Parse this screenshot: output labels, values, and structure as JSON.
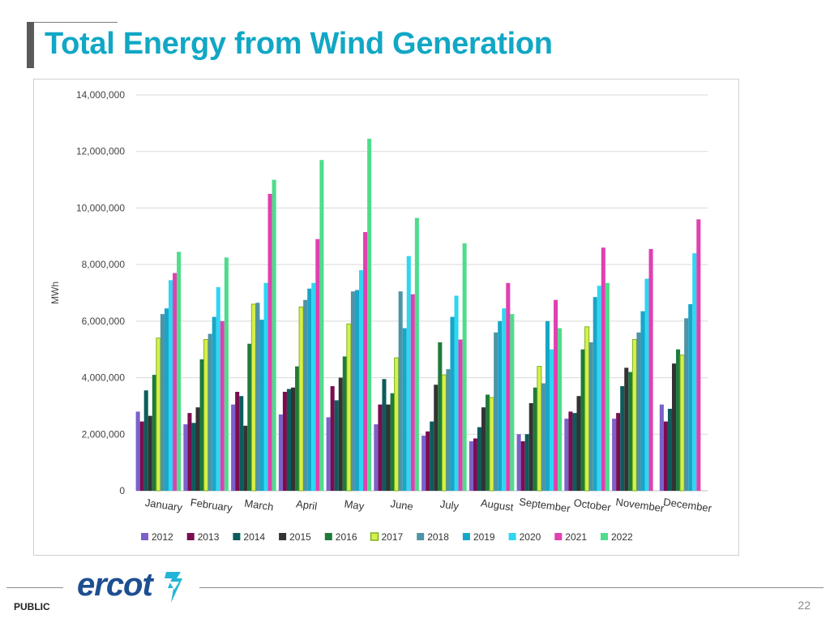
{
  "slide": {
    "title": "Total Energy from Wind Generation",
    "footer_label": "PUBLIC",
    "page_number": "22",
    "logo_text": "ercot"
  },
  "chart_data": {
    "type": "bar",
    "ylabel": "MWh",
    "ylim": [
      0,
      14000000
    ],
    "yticks": [
      0,
      2000000,
      4000000,
      6000000,
      8000000,
      10000000,
      12000000,
      14000000
    ],
    "ytick_labels": [
      "0",
      "2,000,000",
      "4,000,000",
      "6,000,000",
      "8,000,000",
      "10,000,000",
      "12,000,000",
      "14,000,000"
    ],
    "grid": true,
    "legend_position": "bottom",
    "categories": [
      "January",
      "February",
      "March",
      "April",
      "May",
      "June",
      "July",
      "August",
      "September",
      "October",
      "November",
      "December"
    ],
    "series": [
      {
        "name": "2012",
        "color": "#7b61c9",
        "values": [
          2800000,
          2350000,
          3050000,
          2700000,
          2600000,
          2350000,
          1950000,
          1750000,
          2000000,
          2550000,
          2550000,
          3050000
        ]
      },
      {
        "name": "2013",
        "color": "#7a0d50",
        "values": [
          2450000,
          2750000,
          3500000,
          3500000,
          3700000,
          3050000,
          2100000,
          1850000,
          1750000,
          2800000,
          2750000,
          2450000
        ]
      },
      {
        "name": "2014",
        "color": "#0d5c5c",
        "values": [
          3550000,
          2400000,
          3350000,
          3600000,
          3200000,
          3950000,
          2450000,
          2250000,
          2000000,
          2750000,
          3700000,
          2900000
        ]
      },
      {
        "name": "2015",
        "color": "#333333",
        "values": [
          2650000,
          2950000,
          2300000,
          3650000,
          4000000,
          3050000,
          3750000,
          2950000,
          3100000,
          3350000,
          4350000,
          4500000
        ]
      },
      {
        "name": "2016",
        "color": "#1f7a3c",
        "values": [
          4100000,
          4650000,
          5200000,
          4400000,
          4750000,
          3450000,
          5250000,
          3400000,
          3650000,
          5000000,
          4200000,
          5000000
        ]
      },
      {
        "name": "2017",
        "color": "#d9ef4a",
        "values": [
          5400000,
          5350000,
          6600000,
          6500000,
          5900000,
          4700000,
          4100000,
          3300000,
          4400000,
          5800000,
          5350000,
          4800000
        ]
      },
      {
        "name": "2018",
        "color": "#4f93a6",
        "values": [
          6250000,
          5550000,
          6650000,
          6750000,
          7050000,
          7050000,
          4300000,
          5600000,
          3800000,
          5250000,
          5600000,
          6100000
        ]
      },
      {
        "name": "2019",
        "color": "#18a6c8",
        "values": [
          6450000,
          6150000,
          6050000,
          7150000,
          7100000,
          5750000,
          6150000,
          6000000,
          6000000,
          6850000,
          6350000,
          6600000
        ]
      },
      {
        "name": "2020",
        "color": "#2fd6f2",
        "values": [
          7450000,
          7200000,
          7350000,
          7350000,
          7800000,
          8300000,
          6900000,
          6450000,
          5000000,
          7250000,
          7500000,
          8400000
        ]
      },
      {
        "name": "2021",
        "color": "#e040b0",
        "values": [
          7700000,
          6000000,
          10500000,
          8900000,
          9150000,
          6950000,
          5350000,
          7350000,
          6750000,
          8600000,
          8550000,
          9600000
        ]
      },
      {
        "name": "2022",
        "color": "#4fdc8c",
        "values": [
          8450000,
          8250000,
          11000000,
          11700000,
          12450000,
          9650000,
          8750000,
          6250000,
          5750000,
          7350000,
          null,
          null
        ]
      }
    ]
  }
}
